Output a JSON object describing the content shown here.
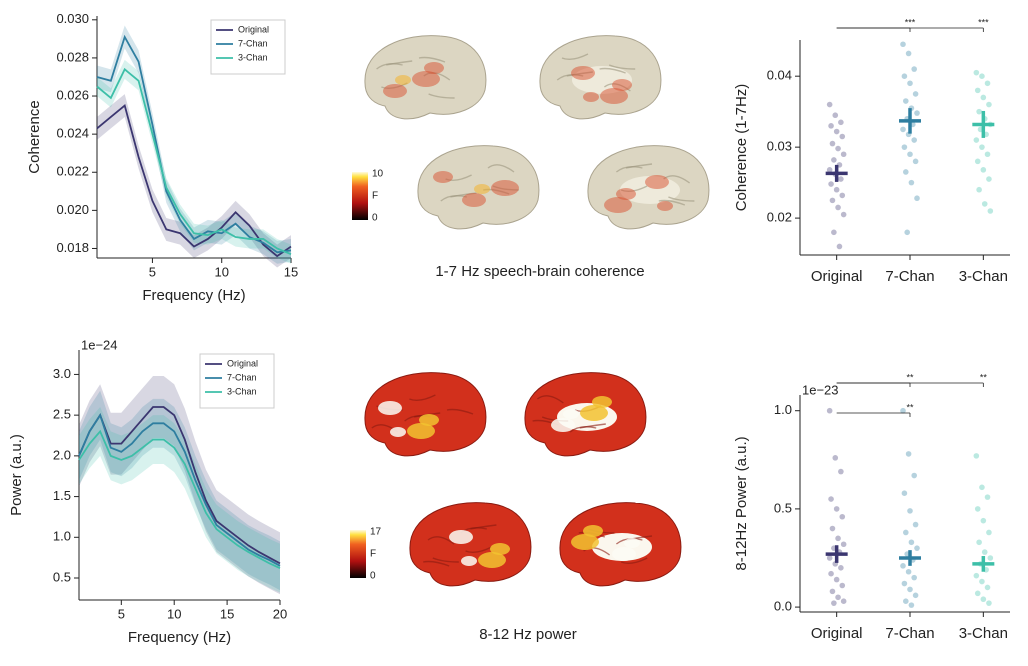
{
  "chart_data": [
    {
      "type": "line",
      "x": [
        1,
        2,
        3,
        4,
        5,
        6,
        7,
        8,
        9,
        10,
        11,
        12,
        13,
        14,
        15
      ],
      "xlim": [
        1,
        15
      ],
      "ylim": [
        0.0175,
        0.0302
      ],
      "xticks": [
        5,
        10,
        15
      ],
      "yticks": [
        0.018,
        {
          "value": 0.02,
          "label": "0.020"
        },
        0.022,
        0.024,
        0.026,
        0.028,
        {
          "value": 0.03,
          "label": "0.030"
        }
      ],
      "xlabel": "Frequency (Hz)",
      "ylabel": "Coherence",
      "legend": "upper right",
      "series": [
        {
          "name": "Original",
          "color": "#3b3670",
          "error": 0.0006,
          "values": [
            0.0243,
            0.0249,
            0.0255,
            0.0228,
            0.0205,
            0.019,
            0.0188,
            0.0181,
            0.0185,
            0.0191,
            0.0199,
            0.0192,
            0.0182,
            0.0176,
            0.0181
          ]
        },
        {
          "name": "7-Chan",
          "color": "#2e7ea0",
          "error": 0.0006,
          "values": [
            0.027,
            0.0268,
            0.0291,
            0.0278,
            0.0245,
            0.021,
            0.0195,
            0.0185,
            0.0189,
            0.0188,
            0.0193,
            0.0186,
            0.0183,
            0.0178,
            0.0179
          ]
        },
        {
          "name": "3-Chan",
          "color": "#3dbfa8",
          "error": 0.0005,
          "values": [
            0.0265,
            0.0259,
            0.0274,
            0.0268,
            0.024,
            0.0212,
            0.0198,
            0.0188,
            0.0187,
            0.019,
            0.0186,
            0.0185,
            0.0185,
            0.018,
            0.0177
          ]
        }
      ]
    },
    {
      "type": "strip",
      "categories": [
        "Original",
        "7-Chan",
        "3-Chan"
      ],
      "colors": [
        "#3b3670",
        "#2e7ea0",
        "#3dbfa8"
      ],
      "ylim": [
        0.0148,
        0.0451
      ],
      "yticks": [
        0.02,
        0.03,
        0.04
      ],
      "ylabel": "Coherence (1-7Hz)",
      "points": [
        [
          0.036,
          0.0345,
          0.0335,
          0.033,
          0.0322,
          0.0315,
          0.0305,
          0.0298,
          0.029,
          0.0282,
          0.0275,
          0.0268,
          0.0262,
          0.0255,
          0.0248,
          0.024,
          0.0232,
          0.0225,
          0.0215,
          0.0205,
          0.018,
          0.016
        ],
        [
          0.0445,
          0.0432,
          0.041,
          0.04,
          0.039,
          0.0375,
          0.0365,
          0.0355,
          0.0348,
          0.034,
          0.0332,
          0.0325,
          0.0318,
          0.031,
          0.03,
          0.029,
          0.028,
          0.0265,
          0.025,
          0.0228,
          0.018
        ],
        [
          0.0405,
          0.04,
          0.039,
          0.038,
          0.037,
          0.036,
          0.035,
          0.034,
          0.0332,
          0.0325,
          0.0318,
          0.031,
          0.03,
          0.029,
          0.028,
          0.0268,
          0.0255,
          0.024,
          0.022,
          0.021
        ]
      ],
      "means": [
        0.0263,
        0.0337,
        0.0332
      ],
      "errors": [
        0.0012,
        0.0018,
        0.0019
      ],
      "comparisons": [
        {
          "groups": [
            "Original",
            "7-Chan"
          ],
          "label": "***"
        },
        {
          "groups": [
            "Original",
            "3-Chan"
          ],
          "label": "***"
        }
      ]
    },
    {
      "type": "line",
      "x": [
        1,
        2,
        3,
        4,
        5,
        6,
        7,
        8,
        9,
        10,
        11,
        12,
        13,
        14,
        15,
        16,
        17,
        18,
        19,
        20
      ],
      "xlim": [
        1,
        20
      ],
      "ylim": [
        0.23,
        3.3
      ],
      "xticks": [
        5,
        10,
        15,
        20
      ],
      "yticks": [
        0.5,
        {
          "value": 1,
          "label": "1.0"
        },
        1.5,
        {
          "value": 2,
          "label": "2.0"
        },
        2.5,
        {
          "value": 3,
          "label": "3.0"
        }
      ],
      "offset_label": "1e−24",
      "xlabel": "Frequency (Hz)",
      "ylabel": "Power (a.u.)",
      "legend": "upper right",
      "series": [
        {
          "name": "Original",
          "color": "#3b3670",
          "error": 0.38,
          "values": [
            2.0,
            2.3,
            2.5,
            2.15,
            2.15,
            2.3,
            2.45,
            2.6,
            2.6,
            2.5,
            2.2,
            1.8,
            1.45,
            1.2,
            1.1,
            1.0,
            0.9,
            0.82,
            0.75,
            0.68
          ]
        },
        {
          "name": "7-Chan",
          "color": "#2e7ea0",
          "error": 0.3,
          "values": [
            2.0,
            2.3,
            2.5,
            2.1,
            2.05,
            2.15,
            2.3,
            2.4,
            2.4,
            2.3,
            2.05,
            1.7,
            1.4,
            1.15,
            1.05,
            0.95,
            0.85,
            0.78,
            0.72,
            0.65
          ]
        },
        {
          "name": "3-Chan",
          "color": "#3dbfa8",
          "error": 0.3,
          "values": [
            1.95,
            2.15,
            2.3,
            2.0,
            1.95,
            2.0,
            2.1,
            2.2,
            2.2,
            2.1,
            1.9,
            1.6,
            1.3,
            1.1,
            1.0,
            0.9,
            0.82,
            0.75,
            0.68,
            0.62
          ]
        }
      ]
    },
    {
      "type": "strip",
      "categories": [
        "Original",
        "7-Chan",
        "3-Chan"
      ],
      "colors": [
        "#3b3670",
        "#2e7ea0",
        "#3dbfa8"
      ],
      "ylim": [
        -0.025,
        1.08
      ],
      "yticks": [
        {
          "value": 0,
          "label": "0.0"
        },
        0.5,
        {
          "value": 1,
          "label": "1.0"
        }
      ],
      "offset_label": "1e−23",
      "ylabel": "8-12Hz Power (a.u.)",
      "points": [
        [
          1.0,
          0.76,
          0.69,
          0.55,
          0.5,
          0.46,
          0.4,
          0.35,
          0.32,
          0.3,
          0.28,
          0.25,
          0.22,
          0.2,
          0.17,
          0.14,
          0.11,
          0.08,
          0.05,
          0.03,
          0.02
        ],
        [
          1.0,
          0.78,
          0.67,
          0.58,
          0.49,
          0.42,
          0.38,
          0.33,
          0.3,
          0.27,
          0.24,
          0.21,
          0.18,
          0.15,
          0.12,
          0.09,
          0.06,
          0.03,
          0.01
        ],
        [
          0.77,
          0.61,
          0.56,
          0.5,
          0.44,
          0.38,
          0.33,
          0.28,
          0.25,
          0.22,
          0.19,
          0.16,
          0.13,
          0.1,
          0.07,
          0.04,
          0.02
        ]
      ],
      "means": [
        0.27,
        0.25,
        0.22
      ],
      "errors": [
        0.045,
        0.04,
        0.04
      ],
      "comparisons": [
        {
          "groups": [
            "Original",
            "7-Chan"
          ],
          "label": "**"
        },
        {
          "groups": [
            "Original",
            "3-Chan"
          ],
          "label": "**"
        },
        {
          "groups": [
            "Original",
            "7-Chan"
          ],
          "label": "**"
        }
      ]
    }
  ],
  "brain_panels": [
    {
      "caption": "1-7 Hz speech-brain coherence",
      "colorbar": {
        "max": 10,
        "label": "F",
        "min": 0
      }
    },
    {
      "caption": "8-12 Hz power",
      "colorbar": {
        "max": 17,
        "label": "F",
        "min": 0
      }
    }
  ]
}
